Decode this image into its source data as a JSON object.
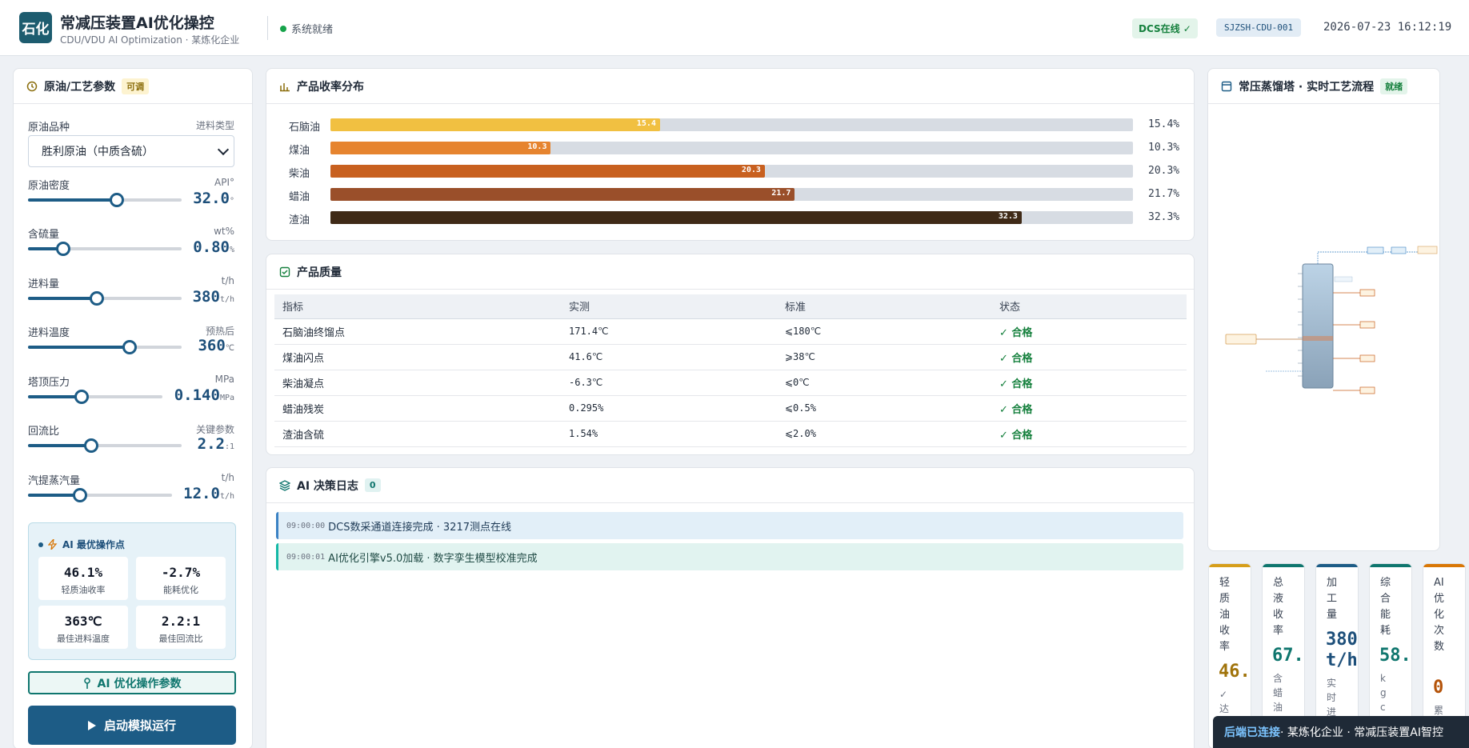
{
  "header": {
    "logo": "石化",
    "title": "常减压装置AI优化操控",
    "subtitle": "CDU/VDU AI Optimization · 某炼化企业",
    "system_status": "系统就绪",
    "dcs_badge": "DCS在线 ✓",
    "unit_id": "SJZSH-CDU-001",
    "datetime": "2026-07-23 16:12:19"
  },
  "left": {
    "title": "原油/工艺参数",
    "tag": "可调",
    "crude": {
      "label": "原油品种",
      "unit": "进料类型",
      "selected": "胜利原油（中质含硫）"
    },
    "params": [
      {
        "label": "原油密度",
        "unit": "API°",
        "value": "32.0",
        "vunit": "°",
        "fraction": 0.58
      },
      {
        "label": "含硫量",
        "unit": "wt%",
        "value": "0.80",
        "vunit": "%",
        "fraction": 0.23
      },
      {
        "label": "进料量",
        "unit": "t/h",
        "value": "380",
        "vunit": "t/h",
        "fraction": 0.45
      },
      {
        "label": "进料温度",
        "unit": "预热后",
        "value": "360",
        "vunit": "℃",
        "fraction": 0.66
      },
      {
        "label": "塔顶压力",
        "unit": "MPa",
        "value": "0.140",
        "vunit": "MPa",
        "fraction": 0.4
      },
      {
        "label": "回流比",
        "unit": "关键参数",
        "value": "2.2",
        "vunit": ":1",
        "fraction": 0.41
      },
      {
        "label": "汽提蒸汽量",
        "unit": "t/h",
        "value": "12.0",
        "vunit": "t/h",
        "fraction": 0.36
      }
    ],
    "ai_box": {
      "title": "AI 最优操作点",
      "cells": [
        {
          "value": "46.1%",
          "label": "轻质油收率"
        },
        {
          "value": "-2.7%",
          "label": "能耗优化"
        },
        {
          "value": "363℃",
          "label": "最佳进料温度"
        },
        {
          "value": "2.2:1",
          "label": "最佳回流比"
        }
      ]
    },
    "optimize_button": "AI 优化操作参数",
    "run_button": "启动模拟运行"
  },
  "yields": {
    "title": "产品收率分布",
    "rows": [
      {
        "name": "石脑油",
        "value": 15.4,
        "label": "15.4",
        "pct": "15.4%",
        "color": "#f1c041"
      },
      {
        "name": "煤油",
        "value": 10.3,
        "label": "10.3",
        "pct": "10.3%",
        "color": "#e6842f"
      },
      {
        "name": "柴油",
        "value": 20.3,
        "label": "20.3",
        "pct": "20.3%",
        "color": "#c8601f"
      },
      {
        "name": "蜡油",
        "value": 21.7,
        "label": "21.7",
        "pct": "21.7%",
        "color": "#9a4f2a"
      },
      {
        "name": "渣油",
        "value": 32.3,
        "label": "32.3",
        "pct": "32.3%",
        "color": "#3f2a17"
      }
    ]
  },
  "quality": {
    "title": "产品质量",
    "headers": [
      "指标",
      "实测",
      "标准",
      "状态"
    ],
    "rows": [
      [
        "石脑油终馏点",
        "171.4℃",
        "⩽180℃",
        "✓ 合格"
      ],
      [
        "煤油闪点",
        "41.6℃",
        "⩾38℃",
        "✓ 合格"
      ],
      [
        "柴油凝点",
        "-6.3℃",
        "⩽0℃",
        "✓ 合格"
      ],
      [
        "蜡油残炭",
        "0.295%",
        "⩽0.5%",
        "✓ 合格"
      ],
      [
        "渣油含硫",
        "1.54%",
        "⩽2.0%",
        "✓ 合格"
      ]
    ]
  },
  "log": {
    "title": "AI 决策日志",
    "count": "0",
    "entries": [
      {
        "time": "09:00:00",
        "text": "DCS数采通道连接完成 · 3217测点在线"
      },
      {
        "time": "09:00:01",
        "text": "AI优化引擎v5.0加载 · 数字孪生模型校准完成"
      }
    ]
  },
  "column": {
    "title": "常压蒸馏塔 · 实时工艺流程",
    "tag": "就绪"
  },
  "kpis": [
    {
      "label": "轻质油收率",
      "value": "46.",
      "sub": "✓达标",
      "color": "#d69e1a",
      "vcolor": "#a0730a"
    },
    {
      "label": "总液收率",
      "value": "67.",
      "sub": "含蜡油",
      "color": "#0f766e",
      "vcolor": "#0f766e"
    },
    {
      "label": "加工量",
      "value": "380 t/h",
      "sub": "实时进料",
      "color": "#1d5c86",
      "vcolor": "#1d4f7a"
    },
    {
      "label": "综合能耗",
      "value": "58.",
      "sub": "kgce/t原油",
      "color": "#0f766e",
      "vcolor": "#0f766e"
    },
    {
      "label": "AI优化次数",
      "value": "0",
      "sub": "累计干预",
      "color": "#d97706",
      "vcolor": "#b45309"
    }
  ],
  "toast": {
    "strong": "后端已连接",
    "text": " · 某炼化企业 · 常减压装置AI智控"
  }
}
